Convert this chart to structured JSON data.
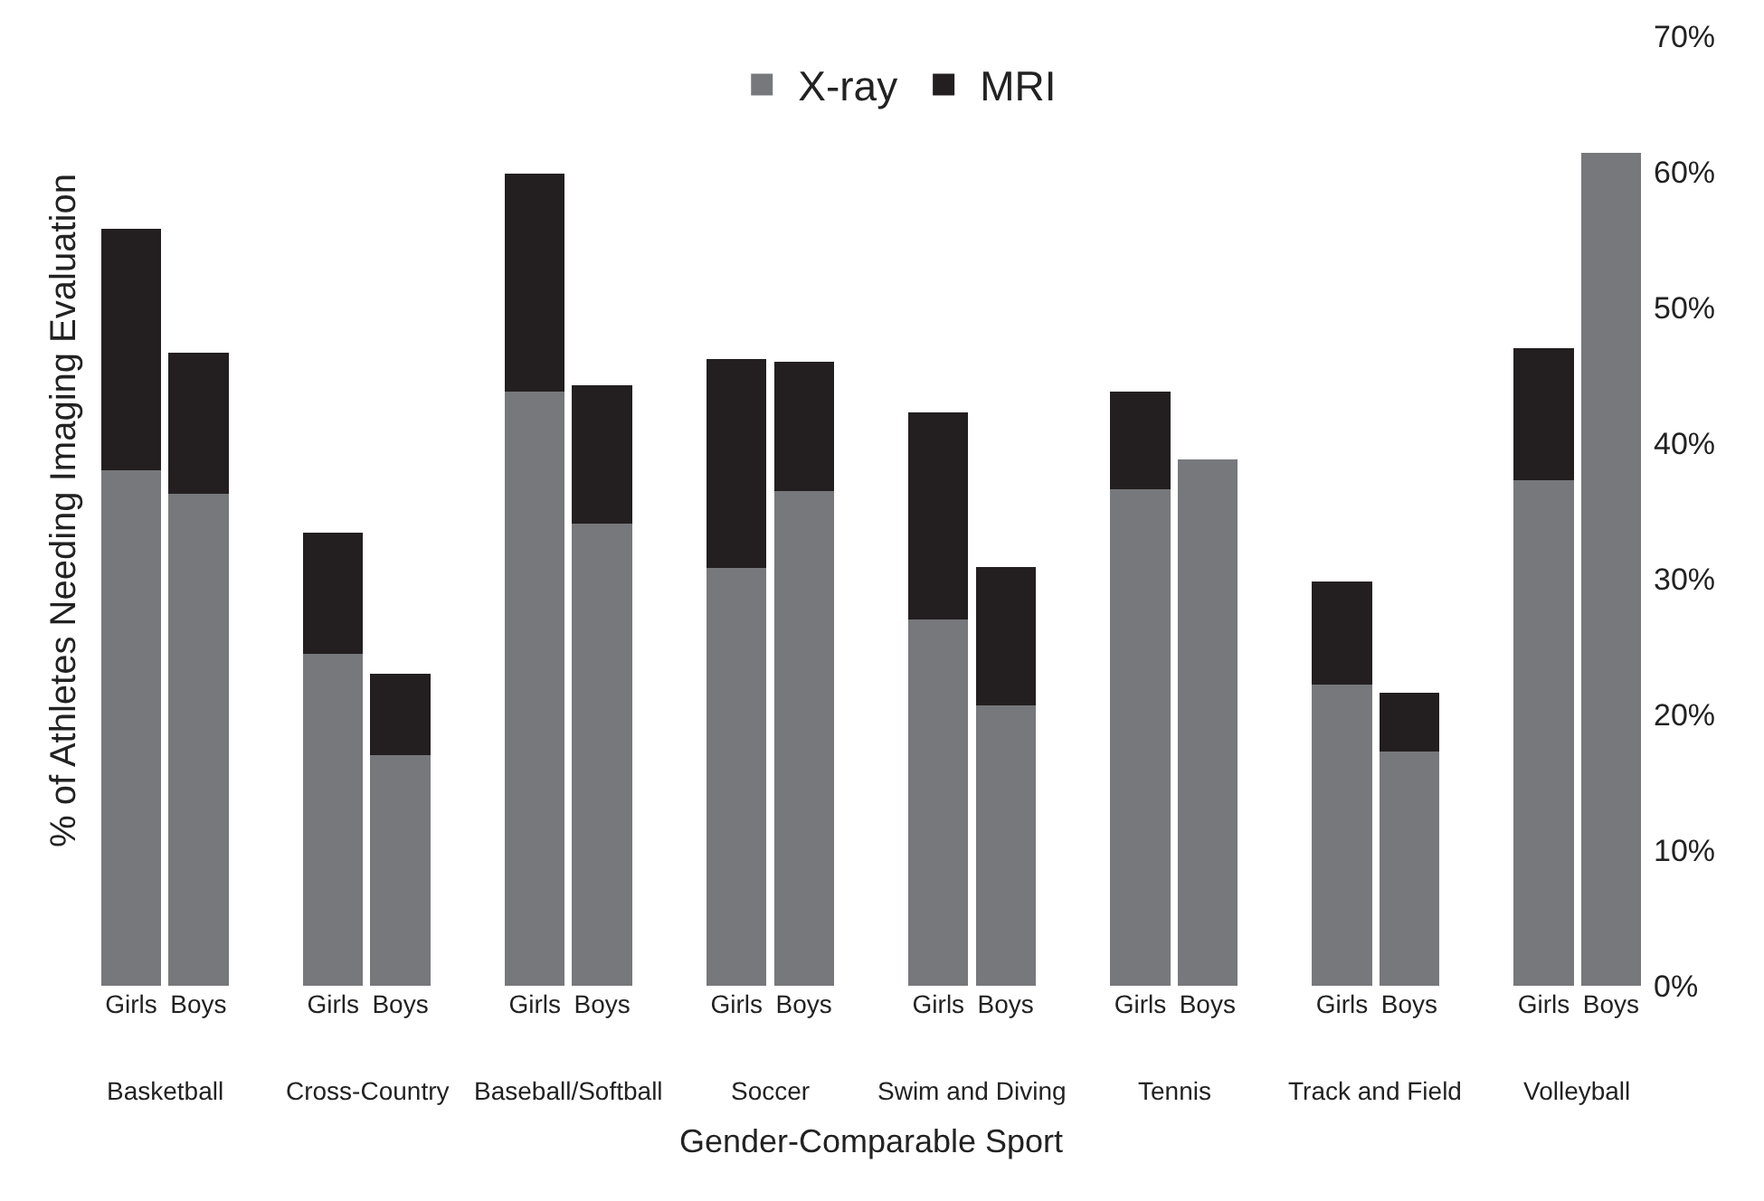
{
  "chart_data": {
    "type": "bar",
    "stacked": true,
    "xlabel": "Gender-Comparable Sport",
    "ylabel": "% of Athletes Needing Imaging Evaluation",
    "categories": [
      "Girls",
      "Boys",
      "Girls",
      "Boys",
      "Girls",
      "Boys",
      "Girls",
      "Boys",
      "Girls",
      "Boys",
      "Girls",
      "Boys",
      "Girls",
      "Boys",
      "Girls",
      "Boys"
    ],
    "annotations": [
      "Basketball",
      "Cross-Country",
      "Baseball/Softball",
      "Soccer",
      "Swim and Diving",
      "Tennis",
      "Track and Field",
      "Volleyball"
    ],
    "series": [
      {
        "name": "X-ray",
        "color": "#77787b",
        "values": [
          38.0,
          36.3,
          24.5,
          17.0,
          43.8,
          34.1,
          30.8,
          36.5,
          27.0,
          20.7,
          36.6,
          38.8,
          22.2,
          17.3,
          37.3,
          61.4
        ]
      },
      {
        "name": "MRI",
        "color": "#231f20",
        "values": [
          17.8,
          10.4,
          8.9,
          6.0,
          16.1,
          10.2,
          15.4,
          9.5,
          15.3,
          10.2,
          7.2,
          0,
          7.6,
          4.3,
          9.7,
          0
        ]
      }
    ],
    "ylim": [
      0,
      70
    ],
    "yticks": [
      {
        "value": 0,
        "label": "0%"
      },
      {
        "value": 10,
        "label": "10%"
      },
      {
        "value": 20,
        "label": "20%"
      },
      {
        "value": 30,
        "label": "30%"
      },
      {
        "value": 40,
        "label": "40%"
      },
      {
        "value": 50,
        "label": "50%"
      },
      {
        "value": 60,
        "label": "60%"
      },
      {
        "value": 70,
        "label": "70%"
      }
    ],
    "grid": false,
    "legend": "top"
  }
}
